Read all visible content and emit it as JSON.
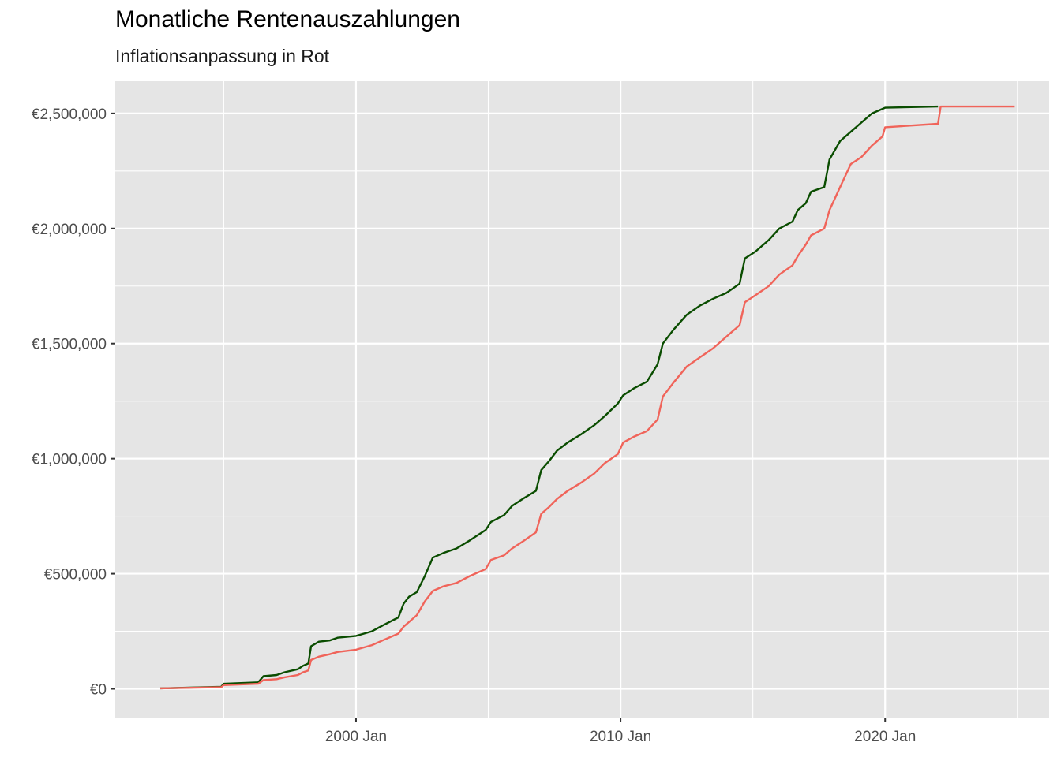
{
  "chart_data": {
    "type": "line",
    "title": "Monatliche Rentenauszahlungen",
    "subtitle": "Inflationsanpassung in Rot",
    "xlabel": "",
    "ylabel": "",
    "x_ticks": [
      {
        "label": "2000 Jan",
        "value": 2000
      },
      {
        "label": "2010 Jan",
        "value": 2010
      },
      {
        "label": "2020 Jan",
        "value": 2020
      }
    ],
    "y_ticks": [
      {
        "label": "€0",
        "value": 0
      },
      {
        "label": "€500,000",
        "value": 500000
      },
      {
        "label": "€1,000,000",
        "value": 1000000
      },
      {
        "label": "€1,500,000",
        "value": 1500000
      },
      {
        "label": "€2,000,000",
        "value": 2000000
      },
      {
        "label": "€2,500,000",
        "value": 2500000
      }
    ],
    "xlim": [
      1990.9,
      2026.2
    ],
    "ylim": [
      -125000,
      2640000
    ],
    "grid": true,
    "colors": {
      "panel": "#e5e5e5",
      "grid": "#ffffff",
      "nominal": "#0a4d00",
      "inflation": "#f0645a"
    },
    "series": [
      {
        "color": "#0a4d00",
        "points": [
          [
            1992.6,
            2000
          ],
          [
            1994.9,
            9000
          ],
          [
            1995.0,
            22000
          ],
          [
            1996.3,
            28000
          ],
          [
            1996.5,
            55000
          ],
          [
            1997.0,
            60000
          ],
          [
            1997.3,
            72000
          ],
          [
            1997.8,
            85000
          ],
          [
            1998.0,
            100000
          ],
          [
            1998.2,
            110000
          ],
          [
            1998.3,
            185000
          ],
          [
            1998.6,
            205000
          ],
          [
            1999.0,
            210000
          ],
          [
            1999.3,
            222000
          ],
          [
            2000.0,
            230000
          ],
          [
            2000.6,
            250000
          ],
          [
            2001.0,
            275000
          ],
          [
            2001.6,
            310000
          ],
          [
            2001.8,
            370000
          ],
          [
            2002.0,
            400000
          ],
          [
            2002.3,
            420000
          ],
          [
            2002.6,
            490000
          ],
          [
            2002.9,
            570000
          ],
          [
            2003.3,
            590000
          ],
          [
            2003.8,
            610000
          ],
          [
            2004.3,
            645000
          ],
          [
            2004.9,
            690000
          ],
          [
            2005.1,
            725000
          ],
          [
            2005.6,
            755000
          ],
          [
            2005.9,
            795000
          ],
          [
            2006.3,
            825000
          ],
          [
            2006.8,
            860000
          ],
          [
            2007.0,
            950000
          ],
          [
            2007.3,
            990000
          ],
          [
            2007.6,
            1035000
          ],
          [
            2008.0,
            1070000
          ],
          [
            2008.5,
            1105000
          ],
          [
            2009.0,
            1145000
          ],
          [
            2009.4,
            1185000
          ],
          [
            2009.9,
            1240000
          ],
          [
            2010.1,
            1275000
          ],
          [
            2010.5,
            1305000
          ],
          [
            2011.0,
            1335000
          ],
          [
            2011.4,
            1410000
          ],
          [
            2011.6,
            1500000
          ],
          [
            2012.0,
            1560000
          ],
          [
            2012.5,
            1625000
          ],
          [
            2013.0,
            1665000
          ],
          [
            2013.5,
            1695000
          ],
          [
            2014.0,
            1720000
          ],
          [
            2014.5,
            1760000
          ],
          [
            2014.7,
            1870000
          ],
          [
            2015.1,
            1900000
          ],
          [
            2015.6,
            1950000
          ],
          [
            2016.0,
            2000000
          ],
          [
            2016.5,
            2030000
          ],
          [
            2016.7,
            2080000
          ],
          [
            2017.0,
            2110000
          ],
          [
            2017.2,
            2160000
          ],
          [
            2017.7,
            2180000
          ],
          [
            2017.9,
            2300000
          ],
          [
            2018.3,
            2380000
          ],
          [
            2018.7,
            2420000
          ],
          [
            2019.1,
            2460000
          ],
          [
            2019.5,
            2500000
          ],
          [
            2020.0,
            2525000
          ],
          [
            2022.0,
            2530000
          ]
        ]
      },
      {
        "color": "#f0645a",
        "points": [
          [
            1992.6,
            2000
          ],
          [
            1994.9,
            7000
          ],
          [
            1995.0,
            16000
          ],
          [
            1996.3,
            22000
          ],
          [
            1996.5,
            38000
          ],
          [
            1997.0,
            42000
          ],
          [
            1997.3,
            50000
          ],
          [
            1997.8,
            60000
          ],
          [
            1998.0,
            72000
          ],
          [
            1998.2,
            80000
          ],
          [
            1998.3,
            125000
          ],
          [
            1998.6,
            140000
          ],
          [
            1999.0,
            150000
          ],
          [
            1999.3,
            160000
          ],
          [
            2000.0,
            170000
          ],
          [
            2000.6,
            190000
          ],
          [
            2001.0,
            210000
          ],
          [
            2001.6,
            240000
          ],
          [
            2001.8,
            270000
          ],
          [
            2002.0,
            290000
          ],
          [
            2002.3,
            320000
          ],
          [
            2002.6,
            380000
          ],
          [
            2002.9,
            425000
          ],
          [
            2003.3,
            445000
          ],
          [
            2003.8,
            460000
          ],
          [
            2004.3,
            490000
          ],
          [
            2004.9,
            520000
          ],
          [
            2005.1,
            560000
          ],
          [
            2005.6,
            580000
          ],
          [
            2005.9,
            610000
          ],
          [
            2006.3,
            640000
          ],
          [
            2006.8,
            680000
          ],
          [
            2007.0,
            760000
          ],
          [
            2007.3,
            790000
          ],
          [
            2007.6,
            825000
          ],
          [
            2008.0,
            860000
          ],
          [
            2008.5,
            895000
          ],
          [
            2009.0,
            935000
          ],
          [
            2009.4,
            980000
          ],
          [
            2009.9,
            1020000
          ],
          [
            2010.1,
            1070000
          ],
          [
            2010.5,
            1095000
          ],
          [
            2011.0,
            1120000
          ],
          [
            2011.4,
            1170000
          ],
          [
            2011.6,
            1270000
          ],
          [
            2012.0,
            1330000
          ],
          [
            2012.5,
            1400000
          ],
          [
            2013.0,
            1440000
          ],
          [
            2013.5,
            1480000
          ],
          [
            2014.0,
            1530000
          ],
          [
            2014.5,
            1580000
          ],
          [
            2014.7,
            1680000
          ],
          [
            2015.1,
            1710000
          ],
          [
            2015.6,
            1750000
          ],
          [
            2016.0,
            1800000
          ],
          [
            2016.5,
            1840000
          ],
          [
            2016.7,
            1880000
          ],
          [
            2017.0,
            1930000
          ],
          [
            2017.2,
            1970000
          ],
          [
            2017.7,
            2000000
          ],
          [
            2017.9,
            2080000
          ],
          [
            2018.3,
            2180000
          ],
          [
            2018.7,
            2280000
          ],
          [
            2019.1,
            2310000
          ],
          [
            2019.5,
            2360000
          ],
          [
            2019.9,
            2400000
          ],
          [
            2020.0,
            2440000
          ],
          [
            2022.0,
            2455000
          ],
          [
            2022.1,
            2530000
          ],
          [
            2024.9,
            2530000
          ]
        ]
      }
    ]
  }
}
